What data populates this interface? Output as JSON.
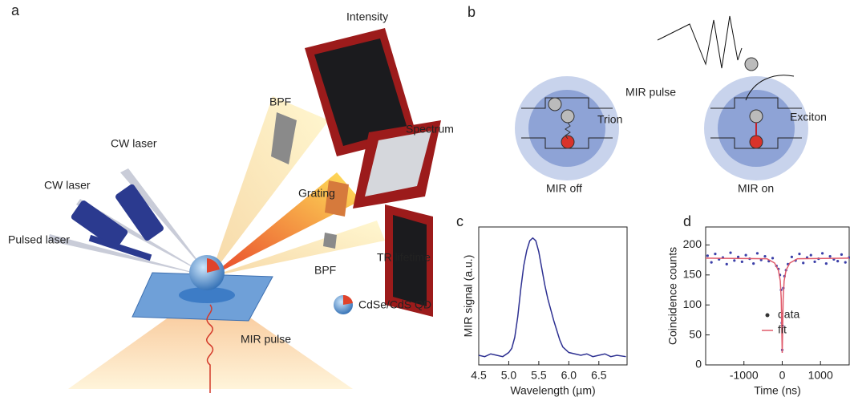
{
  "figure": {
    "a": {
      "label": "a",
      "texts": [
        "Intensity",
        "BPF",
        "Spectrum",
        "CW laser",
        "Grating",
        "CW laser",
        "Pulsed laser",
        "BPF",
        "TR lifetime",
        "CdSe/CdS QD",
        "MIR pulse"
      ]
    },
    "b": {
      "label": "b",
      "texts": [
        "MIR pulse",
        "Trion",
        "Exciton",
        "MIR off",
        "MIR on"
      ]
    }
  },
  "chart_data": [
    {
      "type": "line",
      "panel_label": "c",
      "x_label": "Wavelength (µm)",
      "y_label": "MIR signal (a.u.)",
      "color": "#2e3192",
      "x": [
        4.5,
        4.6,
        4.7,
        4.8,
        4.9,
        5.0,
        5.05,
        5.1,
        5.15,
        5.2,
        5.25,
        5.3,
        5.35,
        5.4,
        5.45,
        5.5,
        5.55,
        5.6,
        5.65,
        5.7,
        5.75,
        5.8,
        5.85,
        5.9,
        6.0,
        6.1,
        6.2,
        6.3,
        6.4,
        6.5,
        6.6,
        6.7,
        6.8,
        6.95
      ],
      "values": [
        0.07,
        0.06,
        0.08,
        0.07,
        0.06,
        0.09,
        0.12,
        0.2,
        0.35,
        0.55,
        0.72,
        0.83,
        0.9,
        0.92,
        0.9,
        0.82,
        0.7,
        0.58,
        0.48,
        0.4,
        0.32,
        0.25,
        0.18,
        0.13,
        0.09,
        0.08,
        0.07,
        0.08,
        0.06,
        0.07,
        0.08,
        0.06,
        0.07,
        0.06
      ],
      "xlim": [
        4.5,
        6.97
      ],
      "ylim": [
        0,
        1
      ],
      "xticks": [
        4.5,
        {
          "value": 5,
          "label": "5.0"
        },
        5.5,
        {
          "value": 6,
          "label": "6.0"
        },
        6.5
      ]
    },
    {
      "type": "scatter",
      "panel_label": "d",
      "x_label": "Time (ns)",
      "y_label": "Coincidence counts",
      "xlim": [
        -2000,
        1750
      ],
      "ylim": [
        0,
        230
      ],
      "xticks": [
        -1000,
        0,
        1000
      ],
      "yticks": [
        0,
        50,
        100,
        150,
        200
      ],
      "series": [
        {
          "name": "data",
          "color": "#3b3fa8",
          "style": "points",
          "x": [
            -1950,
            -1850,
            -1750,
            -1650,
            -1550,
            -1450,
            -1350,
            -1250,
            -1150,
            -1050,
            -950,
            -850,
            -750,
            -650,
            -550,
            -450,
            -350,
            -250,
            -150,
            -100,
            -60,
            -30,
            -10,
            0,
            10,
            30,
            60,
            100,
            150,
            250,
            350,
            450,
            550,
            650,
            750,
            850,
            950,
            1050,
            1150,
            1250,
            1350,
            1450,
            1550,
            1650,
            1750
          ],
          "values": [
            182,
            171,
            185,
            176,
            179,
            168,
            187,
            174,
            180,
            172,
            183,
            177,
            169,
            186,
            175,
            181,
            173,
            178,
            165,
            160,
            150,
            125,
            70,
            25,
            65,
            128,
            148,
            158,
            168,
            180,
            174,
            185,
            170,
            179,
            183,
            172,
            177,
            186,
            169,
            181,
            176,
            173,
            184,
            171,
            179
          ]
        },
        {
          "name": "fit",
          "color": "#e05a6a",
          "style": "line",
          "x": [
            -2000,
            -400,
            -200,
            -100,
            -50,
            -25,
            0,
            25,
            50,
            100,
            200,
            400,
            1750
          ],
          "values": [
            178,
            177,
            170,
            158,
            140,
            110,
            20,
            110,
            140,
            158,
            170,
            177,
            178
          ]
        }
      ]
    }
  ]
}
